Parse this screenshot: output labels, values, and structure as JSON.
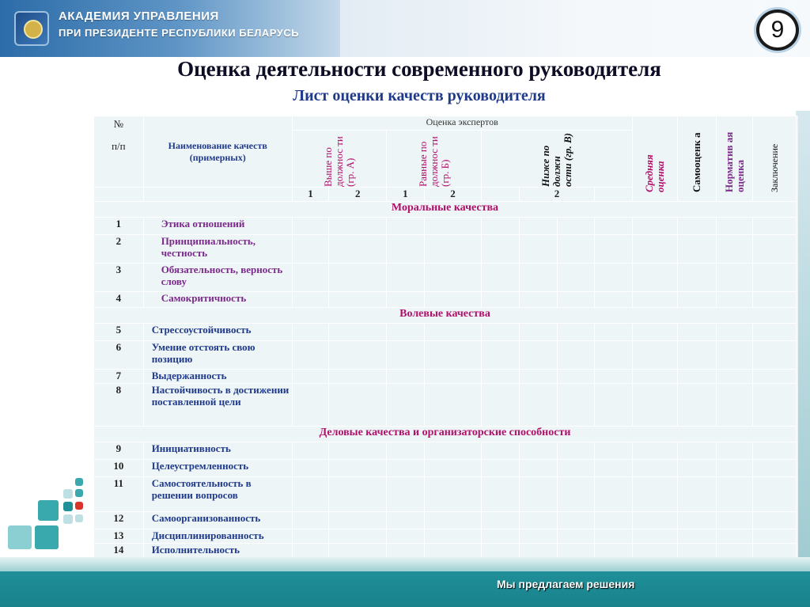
{
  "header": {
    "org_line1": "АКАДЕМИЯ УПРАВЛЕНИЯ",
    "org_line2": "ПРИ ПРЕЗИДЕНТЕ РЕСПУБЛИКИ БЕЛАРУСЬ",
    "page_number": "9"
  },
  "title": "Оценка деятельности современного руководителя",
  "subtitle": "Лист оценки качеств руководителя",
  "table": {
    "col_num_line1": "№",
    "col_num_line2": "п/п",
    "col_name": "Наименование качеств (примерных)",
    "col_experts": "Оценка экспертов",
    "col_group_a": "Выше по должнос ти (гр. А)",
    "col_group_b": "Равные по должнос ти (гр. Б)",
    "col_group_c": "Ниже по должн ости (гр. В)",
    "col_average": "Средняя оценка",
    "col_self": "Самооценк а",
    "col_normative": "Норматив ая оценка",
    "col_conclusion": "Заключение",
    "sub_a1": "1",
    "sub_a2": "2",
    "sub_b1": "1",
    "sub_b2": "2",
    "sub_c2": "2",
    "section_moral": "Моральные качества",
    "section_will": "Волевые качества",
    "section_business": "Деловые качества и организаторские способности",
    "rows_moral": [
      {
        "num": "1",
        "name": "Этика отношений"
      },
      {
        "num": "2",
        "name": "Принципиальность, честность"
      },
      {
        "num": "3",
        "name": "Обязательность, верность слову"
      },
      {
        "num": "4",
        "name": "Самокритичность"
      }
    ],
    "rows_will": [
      {
        "num": "5",
        "name": "Стрессоустойчивость"
      },
      {
        "num": "6",
        "name": "Умение отстоять свою позицию"
      },
      {
        "num": "7",
        "name": "Выдержанность"
      },
      {
        "num": "8",
        "name": "Настойчивость в достижении поставленной цели"
      }
    ],
    "rows_business": [
      {
        "num": "9",
        "name": "Инициативность"
      },
      {
        "num": "10",
        "name": "Целеустремленность"
      },
      {
        "num": "11",
        "name": "Самостоятельность в решении вопросов"
      },
      {
        "num": "12",
        "name": "Самоорганизованность"
      },
      {
        "num": "13",
        "name": "Дисциплинированность"
      },
      {
        "num": "14",
        "name": "Исполнительность"
      }
    ]
  },
  "footer": {
    "slogan": "Мы предлагаем решения"
  },
  "colors": {
    "section_text": "#b0106a",
    "name_text_moral": "#7a2a8a",
    "name_text_other": "#1f3a8a",
    "footer_band": "#1f8f98",
    "table_bg": "#eef5f7"
  }
}
